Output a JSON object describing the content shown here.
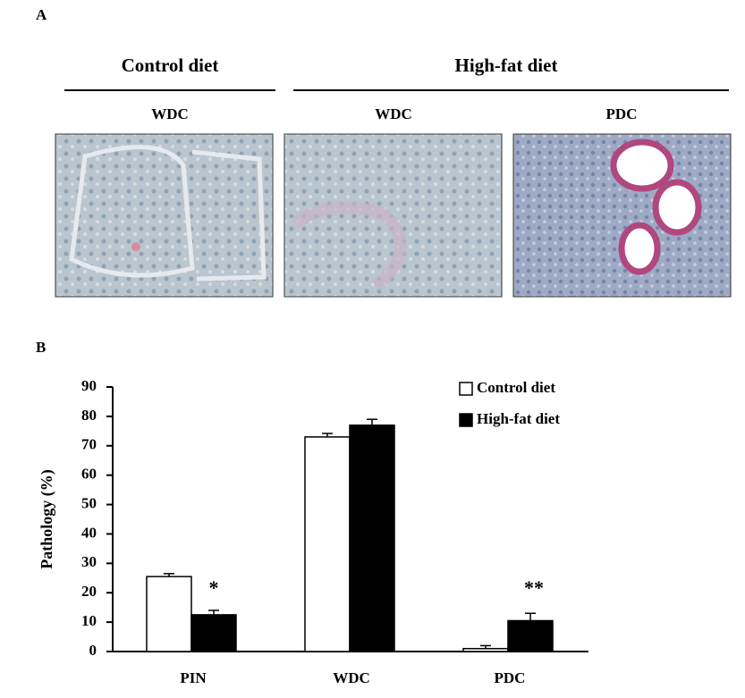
{
  "panel_a": {
    "label": "A",
    "groups": [
      "Control diet",
      "High-fat diet"
    ],
    "images": [
      "WDC",
      "WDC",
      "PDC"
    ]
  },
  "chart_data": {
    "type": "bar",
    "panel_label": "B",
    "y_label": "Pathology (%)",
    "categories": [
      "PIN",
      "WDC",
      "PDC"
    ],
    "series": [
      {
        "name": "Control diet",
        "color": "#ffffff",
        "values": [
          25.5,
          73,
          1
        ],
        "errors": [
          1,
          1.2,
          1
        ]
      },
      {
        "name": "High-fat diet",
        "color": "#000000",
        "values": [
          12.5,
          77,
          10.5
        ],
        "errors": [
          1.5,
          2,
          2.5
        ]
      }
    ],
    "annotations": [
      "*",
      "**"
    ],
    "ylim": [
      0,
      90
    ],
    "yticks": [
      0,
      10,
      20,
      30,
      40,
      50,
      60,
      70,
      80,
      90
    ],
    "grid": false,
    "legend": "top-right"
  }
}
